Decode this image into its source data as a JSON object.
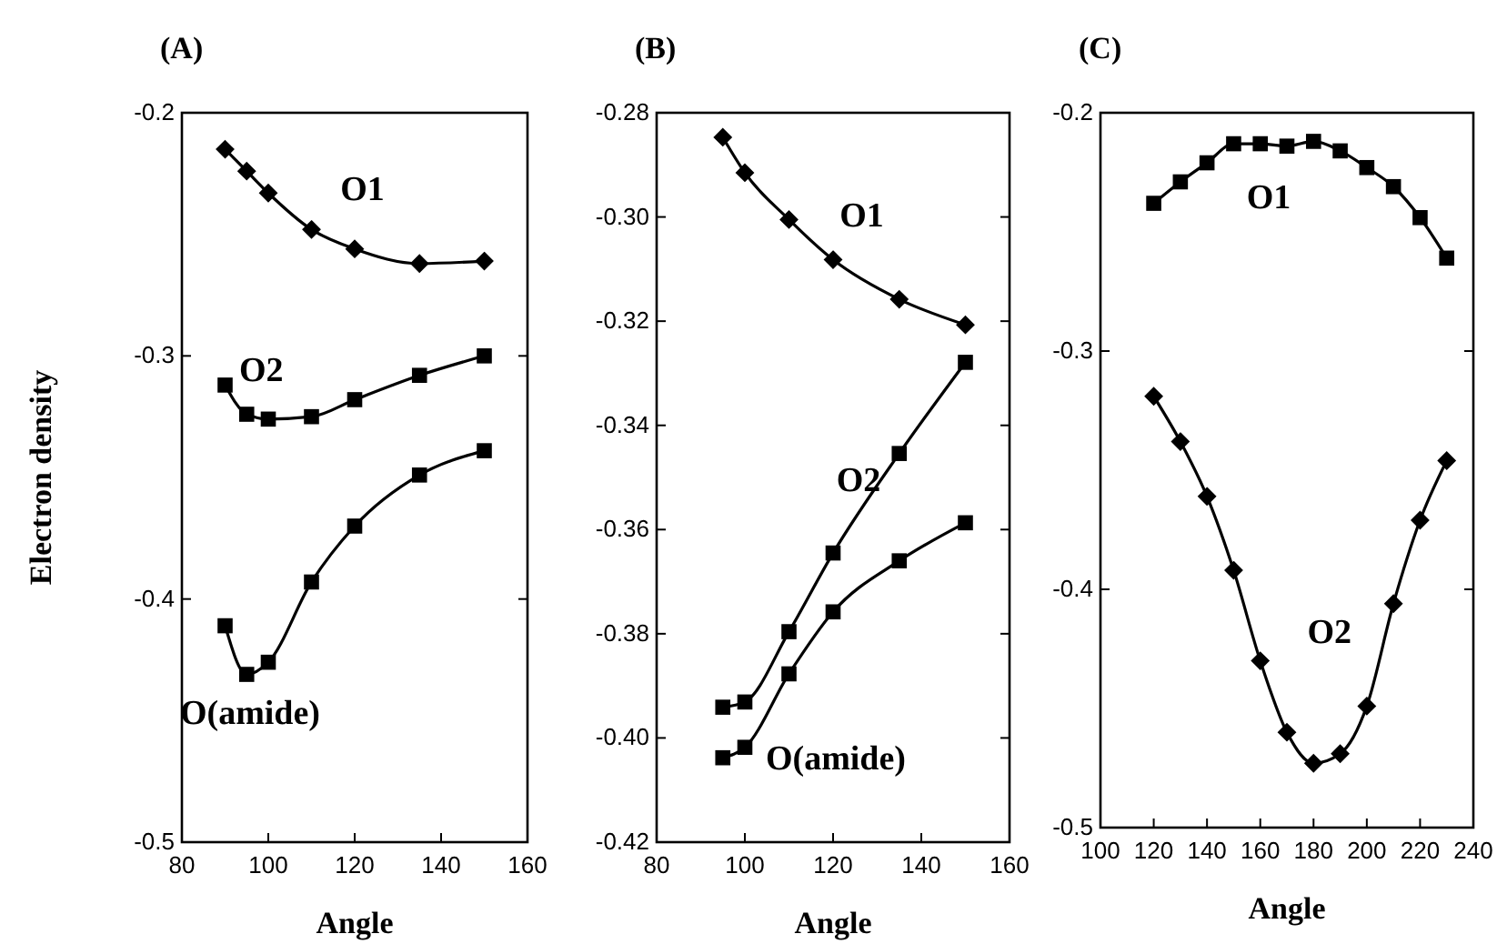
{
  "chart_data": [
    {
      "type": "line",
      "title": "(A)",
      "xlabel": "Angle",
      "ylabel": "Electron density",
      "xlim": [
        80,
        160
      ],
      "xticks": [
        80,
        100,
        120,
        140,
        160
      ],
      "ylim": [
        -0.5,
        -0.2
      ],
      "yticks": [
        -0.5,
        -0.4,
        -0.3,
        -0.2
      ],
      "grid": false,
      "line_style": "solid",
      "series": [
        {
          "name": "O1",
          "color": "#000000",
          "marker": "diamond",
          "x": [
            90,
            95,
            100,
            110,
            120,
            135,
            150
          ],
          "values": [
            -0.215,
            -0.224,
            -0.233,
            -0.248,
            -0.256,
            -0.262,
            -0.261
          ]
        },
        {
          "name": "O2",
          "color": "#000000",
          "marker": "square",
          "x": [
            90,
            95,
            100,
            110,
            120,
            135,
            150
          ],
          "values": [
            -0.312,
            -0.324,
            -0.326,
            -0.325,
            -0.318,
            -0.308,
            -0.3
          ]
        },
        {
          "name": "O(amide)",
          "color": "#000000",
          "marker": "square",
          "x": [
            90,
            95,
            100,
            110,
            120,
            135,
            150
          ],
          "values": [
            -0.411,
            -0.431,
            -0.426,
            -0.393,
            -0.37,
            -0.349,
            -0.339
          ]
        }
      ]
    },
    {
      "type": "line",
      "title": "(B)",
      "xlabel": "Angle",
      "xlim": [
        80,
        160
      ],
      "xticks": [
        80,
        100,
        120,
        140,
        160
      ],
      "ylim": [
        -0.42,
        -0.28
      ],
      "yticks": [
        {
          "value": -0.42,
          "label": "-0.42"
        },
        {
          "value": -0.4,
          "label": "-0.40"
        },
        {
          "value": -0.38,
          "label": "-0.38"
        },
        {
          "value": -0.36,
          "label": "-0.36"
        },
        {
          "value": -0.34,
          "label": "-0.34"
        },
        {
          "value": -0.32,
          "label": "-0.32"
        },
        {
          "value": -0.3,
          "label": "-0.30"
        },
        {
          "value": -0.28,
          "label": "-0.28"
        }
      ],
      "grid": false,
      "line_style": "solid",
      "series": [
        {
          "name": "O1",
          "color": "#000000",
          "marker": "diamond",
          "x": [
            95,
            100,
            110,
            120,
            135,
            150
          ],
          "values": [
            -0.2847,
            -0.2915,
            -0.3005,
            -0.3082,
            -0.3158,
            -0.3207
          ]
        },
        {
          "name": "O2",
          "color": "#000000",
          "marker": "square",
          "x": [
            95,
            100,
            110,
            120,
            135,
            150
          ],
          "values": [
            -0.3941,
            -0.3931,
            -0.3796,
            -0.3645,
            -0.3454,
            -0.3279
          ]
        },
        {
          "name": "O(amide)",
          "color": "#000000",
          "marker": "square",
          "x": [
            95,
            100,
            110,
            120,
            135,
            150
          ],
          "values": [
            -0.4038,
            -0.4018,
            -0.3877,
            -0.3758,
            -0.366,
            -0.3587
          ]
        }
      ]
    },
    {
      "type": "line",
      "title": "(C)",
      "xlabel": "Angle",
      "xlim": [
        100,
        240
      ],
      "xticks": [
        100,
        120,
        140,
        160,
        180,
        200,
        220,
        240
      ],
      "ylim": [
        -0.5,
        -0.2
      ],
      "yticks": [
        -0.5,
        -0.4,
        -0.3,
        -0.2
      ],
      "grid": false,
      "line_style": "solid",
      "series": [
        {
          "name": "O1",
          "color": "#000000",
          "marker": "square",
          "x": [
            120,
            130,
            140,
            150,
            160,
            170,
            180,
            190,
            200,
            210,
            220,
            230
          ],
          "values": [
            -0.238,
            -0.229,
            -0.221,
            -0.213,
            -0.213,
            -0.214,
            -0.212,
            -0.216,
            -0.223,
            -0.231,
            -0.244,
            -0.261
          ]
        },
        {
          "name": "O2",
          "color": "#000000",
          "marker": "diamond",
          "x": [
            120,
            130,
            140,
            150,
            160,
            170,
            180,
            190,
            200,
            210,
            220,
            230
          ],
          "values": [
            -0.319,
            -0.338,
            -0.361,
            -0.392,
            -0.43,
            -0.46,
            -0.473,
            -0.469,
            -0.449,
            -0.406,
            -0.371,
            -0.346
          ]
        }
      ]
    }
  ]
}
